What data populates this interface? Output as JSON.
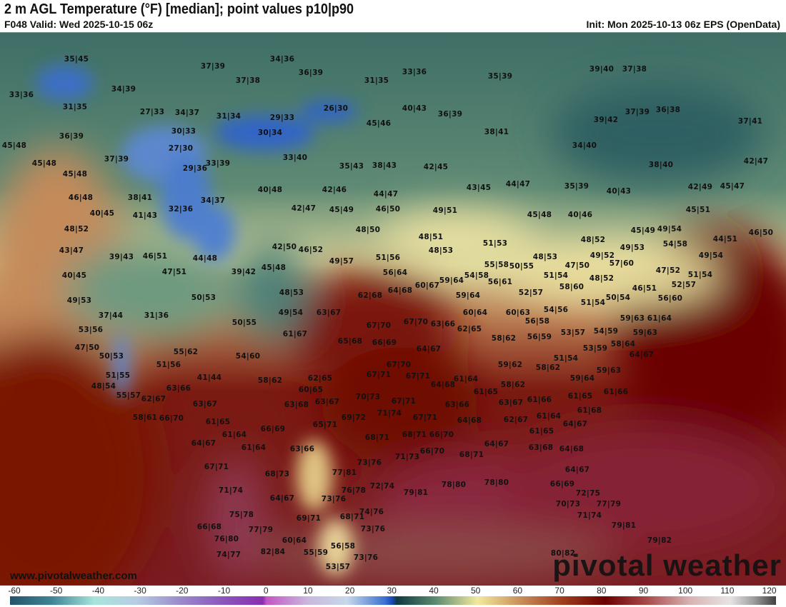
{
  "header": {
    "title": "2 m AGL Temperature (°F) [median]; point values p10|p90",
    "valid": "F048 Valid: Wed 2025-10-15 06z",
    "init": "Init: Mon 2025-10-13 06z EPS (OpenData)"
  },
  "branding": {
    "website": "www.pivotalweather.com",
    "logo_text": "pivotal weather"
  },
  "colorbar": {
    "unit": "°F",
    "ticks": [
      "-60",
      "-50",
      "-40",
      "-30",
      "-20",
      "-10",
      "0",
      "10",
      "20",
      "30",
      "40",
      "50",
      "60",
      "70",
      "80",
      "90",
      "100",
      "110",
      "120"
    ]
  },
  "point_values": [
    "35|45",
    "37|39",
    "37|38",
    "34|39",
    "33|36",
    "31|35",
    "27|33",
    "34|37",
    "31|34",
    "30|33",
    "36|39",
    "45|48",
    "27|30",
    "45|48",
    "37|39",
    "33|39",
    "29|36",
    "45|48",
    "38|41",
    "46|48",
    "34|37",
    "32|36",
    "40|45",
    "41|43",
    "34|36",
    "36|39",
    "31|35",
    "33|36",
    "35|39",
    "26|30",
    "29|33",
    "30|34",
    "45|46",
    "40|43",
    "36|39",
    "38|41",
    "33|40",
    "35|43",
    "38|43",
    "42|45",
    "43|45",
    "44|47",
    "40|48",
    "42|46",
    "44|47",
    "42|47",
    "45|49",
    "46|50",
    "49|51",
    "39|40",
    "37|38",
    "37|39",
    "36|38",
    "39|42",
    "37|41",
    "34|40",
    "38|40",
    "42|47",
    "35|39",
    "40|43",
    "42|49",
    "45|47",
    "45|48",
    "40|46",
    "45|51",
    "48|52",
    "43|47",
    "39|43",
    "46|51",
    "44|48",
    "47|51",
    "39|42",
    "40|45",
    "49|53",
    "50|53",
    "37|44",
    "31|36",
    "53|56",
    "50|55",
    "47|50",
    "50|53",
    "55|62",
    "54|60",
    "51|56",
    "51|55",
    "41|44",
    "48|54",
    "63|66",
    "48|50",
    "48|51",
    "51|53",
    "48|53",
    "42|50",
    "46|52",
    "49|57",
    "51|56",
    "55|58",
    "45|48",
    "56|64",
    "59|64",
    "54|58",
    "56|61",
    "60|67",
    "64|68",
    "62|68",
    "48|53",
    "59|64",
    "49|54",
    "63|67",
    "60|64",
    "67|70",
    "67|70",
    "63|66",
    "62|65",
    "61|67",
    "58|62",
    "65|68",
    "66|69",
    "64|67",
    "59|62",
    "67|70",
    "67|71",
    "67|71",
    "64|68",
    "61|64",
    "62|65",
    "58|62",
    "60|65",
    "58|62",
    "45|49",
    "49|54",
    "44|51",
    "46|50",
    "48|52",
    "54|58",
    "49|53",
    "48|53",
    "49|52",
    "57|60",
    "49|54",
    "50|55",
    "47|50",
    "47|52",
    "51|54",
    "51|54",
    "48|52",
    "58|60",
    "52|57",
    "46|51",
    "52|57",
    "50|54",
    "56|60",
    "51|54",
    "54|56",
    "60|63",
    "59|63",
    "61|64",
    "56|58",
    "53|57",
    "54|59",
    "56|59",
    "59|63",
    "58|64",
    "53|59",
    "64|67",
    "51|54",
    "58|62",
    "59|63",
    "59|64",
    "61|66",
    "55|57",
    "62|67",
    "63|67",
    "58|61",
    "66|70",
    "61|65",
    "61|64",
    "64|67",
    "61|64",
    "67|71",
    "71|74",
    "75|78",
    "66|68",
    "76|80",
    "74|77",
    "63|68",
    "63|67",
    "70|73",
    "67|71",
    "63|66",
    "61|65",
    "63|67",
    "71|74",
    "69|72",
    "67|71",
    "64|68",
    "62|67",
    "66|69",
    "65|71",
    "68|71",
    "68|71",
    "66|70",
    "63|66",
    "64|67",
    "66|70",
    "68|71",
    "71|73",
    "73|76",
    "77|81",
    "68|73",
    "78|80",
    "78|80",
    "72|74",
    "79|81",
    "76|78",
    "64|67",
    "73|76",
    "74|76",
    "69|71",
    "68|71",
    "77|79",
    "73|76",
    "60|64",
    "56|58",
    "82|84",
    "55|59",
    "73|76",
    "53|57",
    "61|65",
    "61|66",
    "61|68",
    "61|64",
    "64|67",
    "61|65",
    "63|68",
    "64|68",
    "64|67",
    "66|69",
    "72|75",
    "70|73",
    "77|79",
    "71|74",
    "79|81",
    "79|82",
    "80|82"
  ]
}
